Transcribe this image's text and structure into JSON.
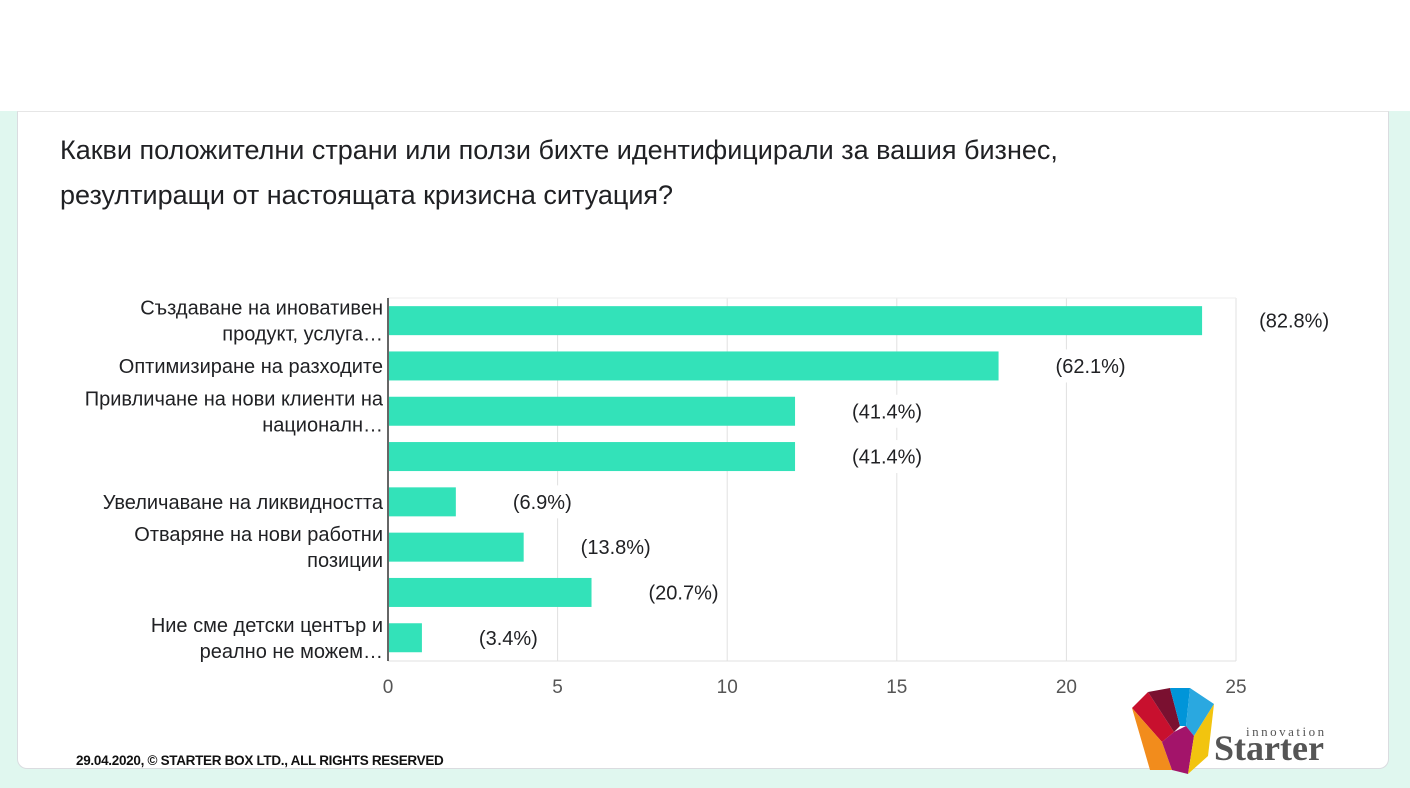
{
  "question": {
    "line1": "Какви положителни страни или ползи бихте идентифицирали за вашия бизнес,",
    "line2": "резултиращи от настоящата кризисна ситуация?"
  },
  "chart_data": {
    "type": "bar",
    "orientation": "horizontal",
    "categories": [
      [
        "Създаване на иновативен",
        "продукт, услуга…"
      ],
      [
        "Оптимизиране на разходите"
      ],
      [
        "Привличане на нови клиенти на",
        "националн…"
      ],
      [],
      [
        "Увеличаване на ликвидността"
      ],
      [
        "Отваряне на нови работни",
        "позиции"
      ],
      [],
      [
        "Ние сме детски център и",
        "реално не можем…"
      ]
    ],
    "values": [
      24,
      18,
      12,
      12,
      2,
      4,
      6,
      1
    ],
    "data_labels": [
      "(82.8%)",
      "(62.1%)",
      "(41.4%)",
      "(41.4%)",
      "(6.9%)",
      "(13.8%)",
      "(20.7%)",
      "(3.4%)"
    ],
    "xlim": [
      0,
      25
    ],
    "x_ticks": [
      "0",
      "5",
      "10",
      "15",
      "20",
      "25"
    ],
    "grid": true,
    "bar_color": "#33e2b9"
  },
  "footer": {
    "text": "29.04.2020, © STARTER BOX LTD., ALL RIGHTS RESERVED"
  },
  "logo": {
    "name": "Starter",
    "tagline": "innovation"
  }
}
